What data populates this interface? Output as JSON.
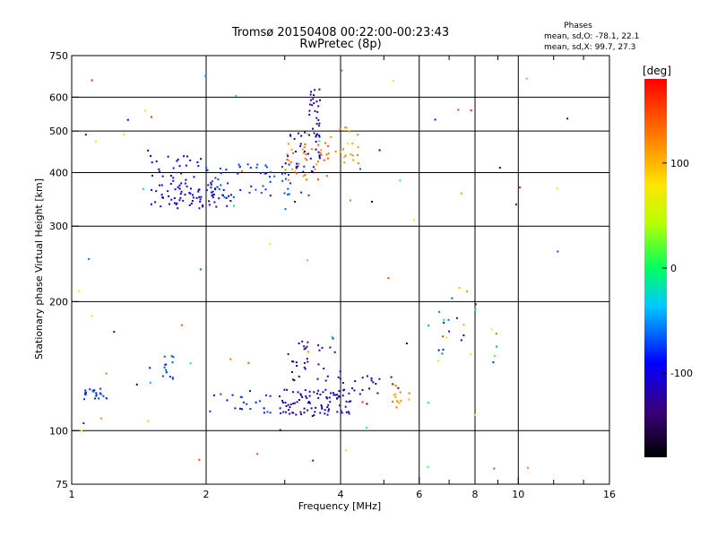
{
  "chart_data": {
    "type": "scatter",
    "title": "Tromsø 20150408 00:22:00-00:23:43",
    "subtitle": "RwPretec (8p)",
    "xlabel": "Frequency [MHz]",
    "ylabel": "Stationary phase Virtual Height [km]",
    "xscale": "log",
    "yscale": "log",
    "xlim": [
      1,
      16
    ],
    "ylim": [
      75,
      750
    ],
    "x_ticks": [
      1,
      2,
      4,
      6,
      8,
      10,
      16
    ],
    "x_tick_labels": [
      "1",
      "2",
      "4",
      "6",
      "8",
      "10",
      "16"
    ],
    "x_minor_ticks": [
      3,
      5,
      7,
      9,
      12,
      14
    ],
    "y_ticks": [
      75,
      100,
      200,
      300,
      400,
      500,
      600,
      750
    ],
    "y_tick_labels": [
      "75",
      "100",
      "200",
      "300",
      "400",
      "500",
      "600",
      "750"
    ],
    "grid": true,
    "info": {
      "heading": "Phases",
      "line1": "mean, sd,O: -78.1, 22.1",
      "line2": "mean, sd,X:  99.7, 27.3"
    },
    "colorbar": {
      "label": "[deg]",
      "range": [
        -180,
        180
      ],
      "ticks": [
        100,
        0,
        -100
      ],
      "tick_labels": [
        "100",
        "0",
        "-100"
      ],
      "colormap": "rainbow (black → purple → blue → cyan → green → yellow → orange → red)"
    },
    "clusters": [
      {
        "x": [
          1.5,
          1.95
        ],
        "y": [
          330,
          440
        ],
        "phase": [
          -110,
          -80
        ],
        "n": 55
      },
      {
        "x": [
          1.7,
          2.3
        ],
        "y": [
          330,
          380
        ],
        "phase": [
          -120,
          -95
        ],
        "n": 45
      },
      {
        "x": [
          2.0,
          3.4
        ],
        "y": [
          350,
          420
        ],
        "phase": [
          -85,
          -65
        ],
        "n": 55
      },
      {
        "x": [
          3.0,
          3.8
        ],
        "y": [
          380,
          470
        ],
        "phase": [
          110,
          150
        ],
        "n": 40
      },
      {
        "x": [
          3.0,
          3.6
        ],
        "y": [
          400,
          500
        ],
        "phase": [
          -130,
          -100
        ],
        "n": 30
      },
      {
        "x": [
          3.4,
          3.6
        ],
        "y": [
          480,
          640
        ],
        "phase": [
          -130,
          -110
        ],
        "n": 28
      },
      {
        "x": [
          3.8,
          4.4
        ],
        "y": [
          420,
          520
        ],
        "phase": [
          100,
          130
        ],
        "n": 18
      },
      {
        "x": [
          1.05,
          1.2
        ],
        "y": [
          118,
          126
        ],
        "phase": [
          -85,
          -70
        ],
        "n": 22
      },
      {
        "x": [
          1.6,
          1.7
        ],
        "y": [
          130,
          150
        ],
        "phase": [
          -80,
          -65
        ],
        "n": 14
      },
      {
        "x": [
          2.0,
          2.8
        ],
        "y": [
          110,
          125
        ],
        "phase": [
          -90,
          -70
        ],
        "n": 22
      },
      {
        "x": [
          2.9,
          4.2
        ],
        "y": [
          108,
          125
        ],
        "phase": [
          -125,
          -100
        ],
        "n": 90
      },
      {
        "x": [
          3.0,
          4.0
        ],
        "y": [
          130,
          165
        ],
        "phase": [
          -140,
          -110
        ],
        "n": 35
      },
      {
        "x": [
          4.0,
          5.5
        ],
        "y": [
          115,
          135
        ],
        "phase": [
          -150,
          -100
        ],
        "n": 22
      },
      {
        "x": [
          5.2,
          5.8
        ],
        "y": [
          112,
          130
        ],
        "phase": [
          100,
          140
        ],
        "n": 14
      },
      {
        "x": [
          6.2,
          9.0
        ],
        "y": [
          140,
          220
        ],
        "phase": [
          -160,
          170
        ],
        "n": 24
      },
      {
        "x": [
          1.0,
          13.0
        ],
        "y": [
          78,
          700
        ],
        "phase": [
          -180,
          180
        ],
        "n": 80
      }
    ]
  }
}
